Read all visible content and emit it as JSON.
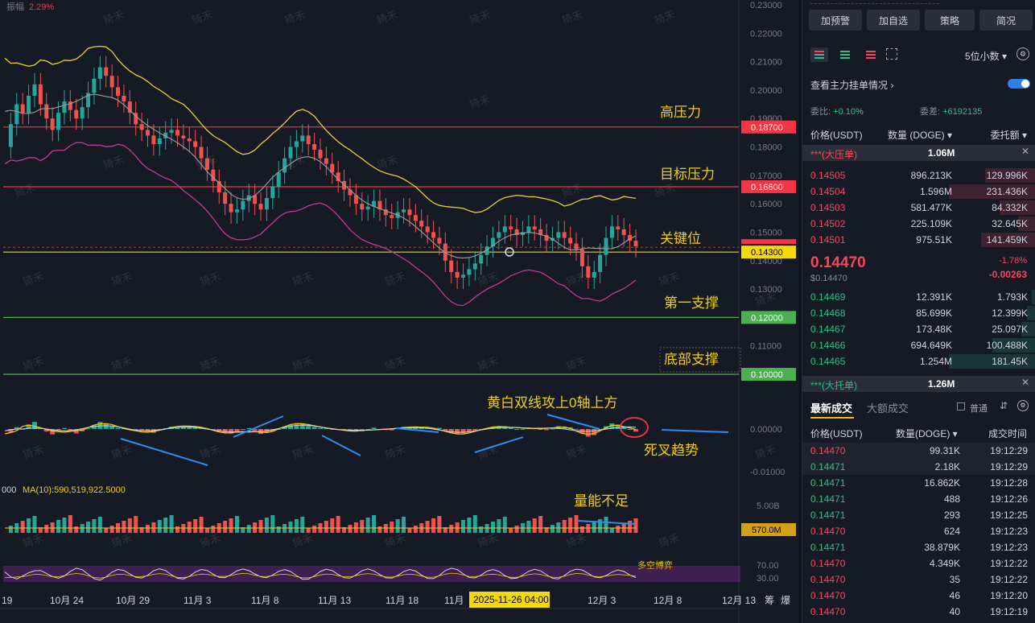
{
  "chart_data": {
    "type": "candlestick",
    "symbol_meta": {
      "amplitude_label": "振幅",
      "amplitude_value": "2.29%"
    },
    "y_axis": {
      "min": 0.09,
      "max": 0.23,
      "ticks": [
        "0.23000",
        "0.22000",
        "0.21000",
        "0.20000",
        "0.19000",
        "0.18000",
        "0.17000",
        "0.16000",
        "0.15000",
        "0.14000",
        "0.13000",
        "0.11000",
        "0.10000"
      ]
    },
    "x_axis": {
      "ticks": [
        "19",
        "10月 24",
        "10月 29",
        "11月 3",
        "11月 8",
        "11月 13",
        "11月 18",
        "11月",
        "12月 3",
        "12月 8",
        "12月 13"
      ],
      "cursor_label": "2025-11-26 04:00",
      "right_labels": [
        "筹",
        "爆"
      ]
    },
    "levels": [
      {
        "name": "高压力",
        "value": 0.187,
        "label": "0.18700",
        "color": "#f23645",
        "badge": "#f23645"
      },
      {
        "name": "目标压力",
        "value": 0.166,
        "label": "0.16600",
        "color": "#f23645",
        "badge": "#f23645"
      },
      {
        "name": "关键位",
        "value": 0.143,
        "label": "0.14300",
        "color": "#f0d000",
        "badge": "#f5d90a"
      },
      {
        "name": "第一支撑",
        "value": 0.12,
        "label": "0.12000",
        "color": "#4caf50",
        "badge": "#4caf50"
      },
      {
        "name": "底部支撑",
        "value": 0.1,
        "label": "0.10000",
        "color": "#4caf50",
        "badge": "#4caf50"
      }
    ],
    "current_price": {
      "value": 0.1447,
      "label": "0.14470"
    },
    "close_series": [
      0.18,
      0.188,
      0.195,
      0.192,
      0.198,
      0.202,
      0.195,
      0.19,
      0.186,
      0.192,
      0.196,
      0.193,
      0.19,
      0.194,
      0.199,
      0.204,
      0.208,
      0.205,
      0.201,
      0.198,
      0.196,
      0.192,
      0.188,
      0.186,
      0.184,
      0.181,
      0.183,
      0.185,
      0.186,
      0.184,
      0.183,
      0.182,
      0.18,
      0.176,
      0.172,
      0.168,
      0.164,
      0.16,
      0.157,
      0.158,
      0.161,
      0.163,
      0.16,
      0.158,
      0.162,
      0.166,
      0.171,
      0.176,
      0.18,
      0.182,
      0.184,
      0.181,
      0.179,
      0.176,
      0.174,
      0.171,
      0.168,
      0.165,
      0.163,
      0.16,
      0.158,
      0.159,
      0.161,
      0.158,
      0.156,
      0.155,
      0.157,
      0.158,
      0.156,
      0.154,
      0.152,
      0.15,
      0.148,
      0.146,
      0.14,
      0.136,
      0.134,
      0.135,
      0.137,
      0.139,
      0.142,
      0.145,
      0.148,
      0.15,
      0.152,
      0.151,
      0.149,
      0.15,
      0.152,
      0.151,
      0.149,
      0.147,
      0.148,
      0.15,
      0.148,
      0.146,
      0.144,
      0.138,
      0.134,
      0.136,
      0.142,
      0.148,
      0.152,
      0.151,
      0.149,
      0.147,
      0.145
    ],
    "annotations": [
      {
        "text": "高压力"
      },
      {
        "text": "目标压力"
      },
      {
        "text": "关键位"
      },
      {
        "text": "第一支撑"
      },
      {
        "text": "底部支撑"
      },
      {
        "text": "黄白双线攻上0轴上方"
      },
      {
        "text": "死叉趋势"
      },
      {
        "text": "量能不足"
      },
      {
        "text": "多空博弈"
      }
    ],
    "macd": {
      "ticks": [
        "0.00000",
        "-0.01000"
      ]
    },
    "volume": {
      "ma_label": "MA(10):590,519,922.5000",
      "left_label": "000",
      "ticks": [
        "5.00B"
      ],
      "current_label": "570.0M"
    },
    "rsi": {
      "ticks": [
        "70.00",
        "30.00"
      ]
    },
    "watermark": "猗禾"
  },
  "panel": {
    "buttons": [
      "加预警",
      "加自选",
      "策略",
      "简况"
    ],
    "precision": "5位小数",
    "main_orders_label": "查看主力挂单情况",
    "ratio": {
      "label": "委比:",
      "value": "+0.10%",
      "diff_label": "委差:",
      "diff_value": "+6192135"
    },
    "headers": {
      "price": "价格(USDT)",
      "qty": "数量 (DOGE)",
      "amount": "委托额"
    },
    "big_ask": {
      "label": "***(大压单)",
      "value": "1.06M"
    },
    "asks": [
      {
        "price": "0.14505",
        "qty": "896.213K",
        "amount": "129.996K",
        "fill": 0.35
      },
      {
        "price": "0.14504",
        "qty": "1.596M",
        "amount": "231.436K",
        "fill": 0.6
      },
      {
        "price": "0.14503",
        "qty": "581.477K",
        "amount": "84.332K",
        "fill": 0.25
      },
      {
        "price": "0.14502",
        "qty": "225.109K",
        "amount": "32.645K",
        "fill": 0.12
      },
      {
        "price": "0.14501",
        "qty": "975.51K",
        "amount": "141.459K",
        "fill": 0.38
      }
    ],
    "last": {
      "price": "0.14470",
      "usd": "$0.14470",
      "pct": "-1.78%",
      "chg": "-0.00263"
    },
    "bids": [
      {
        "price": "0.14469",
        "qty": "12.391K",
        "amount": "1.793K",
        "fill": 0.03
      },
      {
        "price": "0.14468",
        "qty": "85.699K",
        "amount": "12.399K",
        "fill": 0.06
      },
      {
        "price": "0.14467",
        "qty": "173.48K",
        "amount": "25.097K",
        "fill": 0.1
      },
      {
        "price": "0.14466",
        "qty": "694.649K",
        "amount": "100.488K",
        "fill": 0.3
      },
      {
        "price": "0.14465",
        "qty": "1.254M",
        "amount": "181.45K",
        "fill": 0.6
      }
    ],
    "big_bid": {
      "label": "***(大托单)",
      "value": "1.26M"
    },
    "trades_tabs": [
      "最新成交",
      "大额成交"
    ],
    "normal_label": "普通",
    "trade_headers": {
      "price": "价格(USDT)",
      "qty": "数量(DOGE)",
      "time": "成交时间"
    },
    "trades": [
      {
        "price": "0.14470",
        "qty": "99.31K",
        "time": "19:12:29",
        "side": "sell"
      },
      {
        "price": "0.14471",
        "qty": "2.18K",
        "time": "19:12:29",
        "side": "buy"
      },
      {
        "price": "0.14471",
        "qty": "16.862K",
        "time": "19:12:28",
        "side": "buy"
      },
      {
        "price": "0.14471",
        "qty": "488",
        "time": "19:12:26",
        "side": "buy"
      },
      {
        "price": "0.14471",
        "qty": "293",
        "time": "19:12:25",
        "side": "buy"
      },
      {
        "price": "0.14470",
        "qty": "624",
        "time": "19:12:23",
        "side": "sell"
      },
      {
        "price": "0.14471",
        "qty": "38.879K",
        "time": "19:12:23",
        "side": "buy"
      },
      {
        "price": "0.14470",
        "qty": "4.349K",
        "time": "19:12:22",
        "side": "sell"
      },
      {
        "price": "0.14470",
        "qty": "35",
        "time": "19:12:22",
        "side": "sell"
      },
      {
        "price": "0.14470",
        "qty": "46",
        "time": "19:12:20",
        "side": "sell"
      },
      {
        "price": "0.14470",
        "qty": "40",
        "time": "19:12:19",
        "side": "sell"
      }
    ]
  }
}
